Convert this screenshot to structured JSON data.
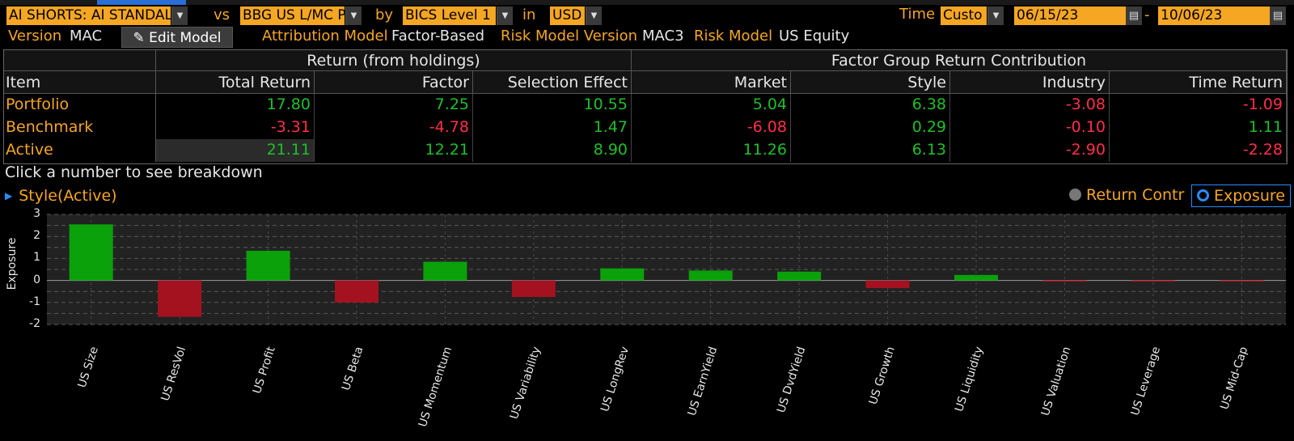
{
  "header": {
    "portfolio_select": "AI SHORTS: AI STANDAL",
    "vs_label": "vs",
    "benchmark_select": "BBG US L/MC P",
    "by_label": "by",
    "classification_select": "BICS Level 1",
    "in_label": "in",
    "currency_select": "USD",
    "time_label": "Time",
    "time_select": "Custo",
    "start_date": "06/15/23",
    "date_sep": "-",
    "end_date": "10/06/23"
  },
  "subheader": {
    "version_label": "Version",
    "version_value": "MAC",
    "edit_model_label": "Edit Model",
    "attribution_label": "Attribution Model",
    "attribution_value": "Factor-Based",
    "risk_version_label": "Risk Model Version",
    "risk_version_value": "MAC3",
    "risk_model_label": "Risk Model",
    "risk_model_value": "US Equity"
  },
  "table": {
    "group_headers": [
      "Return (from holdings)",
      "Factor Group Return Contribution"
    ],
    "columns": [
      "Item",
      "Total Return",
      "Factor",
      "Selection Effect",
      "Market",
      "Style",
      "Industry",
      "Time Return"
    ],
    "rows": [
      {
        "item": "Portfolio",
        "values": [
          "17.80",
          "7.25",
          "10.55",
          "5.04",
          "6.38",
          "-3.08",
          "-1.09"
        ]
      },
      {
        "item": "Benchmark",
        "values": [
          "-3.31",
          "-4.78",
          "1.47",
          "-6.08",
          "0.29",
          "-0.10",
          "1.11"
        ]
      },
      {
        "item": "Active",
        "values": [
          "21.11",
          "12.21",
          "8.90",
          "11.26",
          "6.13",
          "-2.90",
          "-2.28"
        ]
      }
    ]
  },
  "hint": "Click a number to see breakdown",
  "section_title": "Style(Active)",
  "toggle": {
    "return_label": "Return Contr",
    "exposure_label": "Exposure",
    "selected": "Exposure"
  },
  "colors": {
    "positive": "#1fbf2a",
    "negative": "#ff2f4a",
    "bar_positive": "#0aa10a",
    "bar_negative": "#a3121e",
    "accent": "#f5a623",
    "selected": "#2a8bff"
  },
  "chart_data": {
    "type": "bar",
    "ylabel": "Exposure",
    "ylim": [
      -2,
      3
    ],
    "yticks": [
      3,
      2,
      1,
      0,
      -1,
      -2
    ],
    "grid": true,
    "categories": [
      "US Size",
      "US ResVol",
      "US Profit",
      "US Beta",
      "US Momentum",
      "US Variability",
      "US LongRev",
      "US EarnYield",
      "US DvdYield",
      "US Growth",
      "US Liquidity",
      "US Valuation",
      "US Leverage",
      "US Mid-Cap"
    ],
    "values": [
      2.55,
      -1.65,
      1.35,
      -1.0,
      0.85,
      -0.75,
      0.55,
      0.45,
      0.4,
      -0.35,
      0.25,
      -0.05,
      -0.02,
      -0.02
    ]
  }
}
